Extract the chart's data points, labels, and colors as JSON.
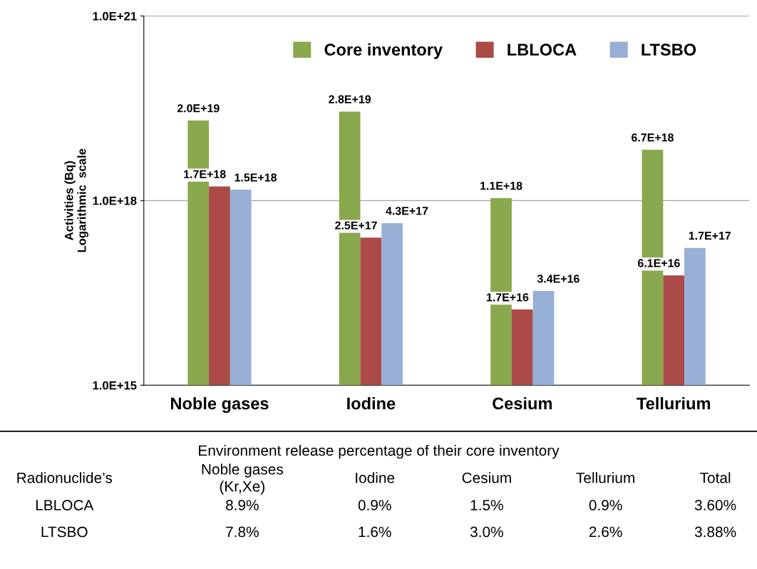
{
  "chart_data": {
    "type": "bar",
    "ylabel": "Activities (Bq)\nLogarithmic  scale",
    "log": true,
    "ylim": [
      1000000000000000.0,
      1e+21
    ],
    "yticks": [
      {
        "value": 1000000000000000.0,
        "label": "1.0E+15"
      },
      {
        "value": 1e+18,
        "label": "1.0E+18"
      },
      {
        "value": 1e+21,
        "label": "1.0E+21"
      }
    ],
    "grid": "y",
    "legend": "top",
    "categories": [
      "Noble gases",
      "Iodine",
      "Cesium",
      "Tellurium"
    ],
    "series": [
      {
        "name": "Core inventory",
        "color": "#8aa84e",
        "values": [
          2e+19,
          2.8e+19,
          1.1e+18,
          6.7e+18
        ],
        "value_labels": [
          "2.0E+19",
          "2.8E+19",
          "1.1E+18",
          "6.7E+18"
        ]
      },
      {
        "name": "LBLOCA",
        "color": "#ab4a47",
        "values": [
          1.7e+18,
          2.5e+17,
          1.7e+16,
          6.1e+16
        ],
        "value_labels": [
          "1.7E+18",
          "2.5E+17",
          "1.7E+16",
          "6.1E+16"
        ]
      },
      {
        "name": "LTSBO",
        "color": "#98afd6",
        "values": [
          1.5e+18,
          4.3e+17,
          3.4e+16,
          1.7e+17
        ],
        "value_labels": [
          "1.5E+18",
          "4.3E+17",
          "3.4E+16",
          "1.7E+17"
        ]
      }
    ],
    "annotations": [
      "Environment release percentage of their core inventory",
      "Radionuclide’s",
      "Noble gases\n(Kr,Xe)",
      "Iodine",
      "Cesium",
      "Tellurium",
      "Total",
      "LBLOCA",
      "8.9%",
      "0.9%",
      "1.5%",
      "0.9%",
      "3.60%",
      "LTSBO",
      "7.8%",
      "1.6%",
      "3.0%",
      "2.6%",
      "3.88%"
    ]
  }
}
